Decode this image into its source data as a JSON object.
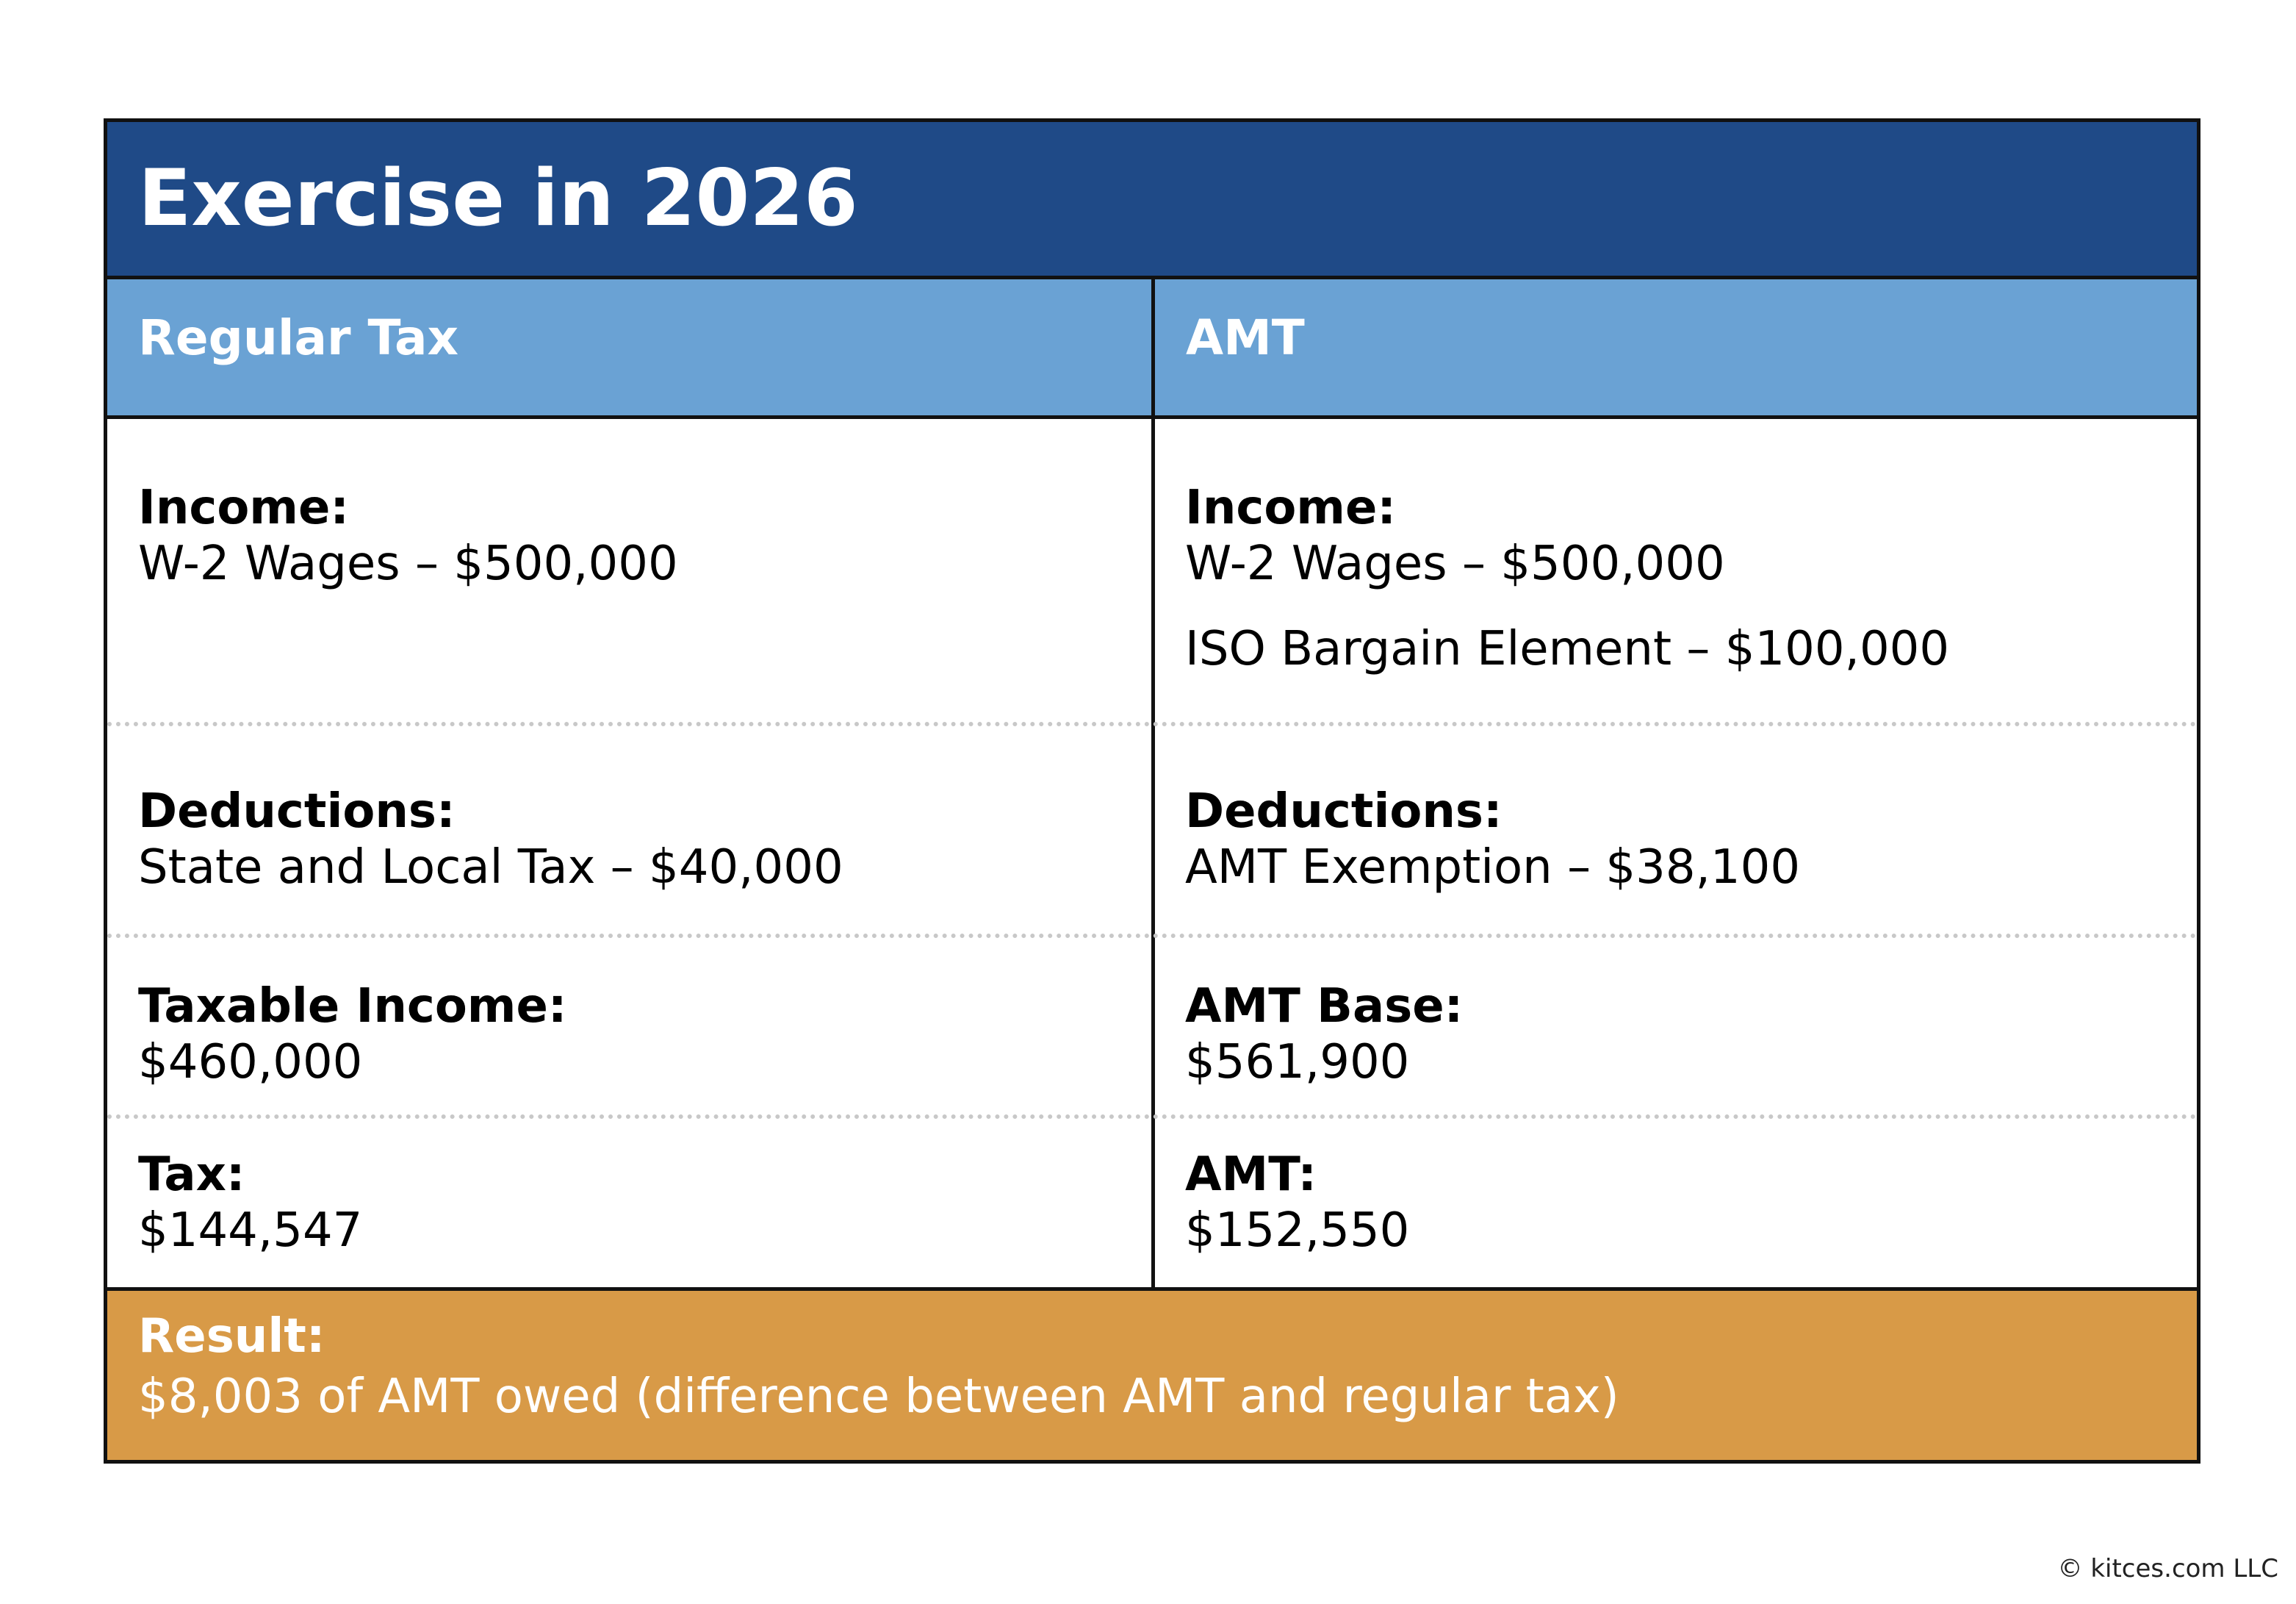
{
  "title": "Exercise in 2026",
  "columns": {
    "left_header": "Regular Tax",
    "right_header": "AMT"
  },
  "rows": {
    "income": {
      "left_label": "Income:",
      "left_value": "W-2 Wages – $500,000",
      "right_label": "Income:",
      "right_value": "W-2 Wages – $500,000",
      "right_value_2": "ISO Bargain Element – $100,000"
    },
    "deductions": {
      "left_label": "Deductions:",
      "left_value": "State and Local Tax – $40,000",
      "right_label": "Deductions:",
      "right_value": "AMT Exemption – $38,100"
    },
    "taxable": {
      "left_label": "Taxable Income:",
      "left_value": "$460,000",
      "right_label": "AMT Base:",
      "right_value": "$561,900"
    },
    "tax": {
      "left_label": "Tax:",
      "left_value": "$144,547",
      "right_label": "AMT:",
      "right_value": "$152,550"
    }
  },
  "result": {
    "label": "Result:",
    "text": "$8,003 of AMT owed (difference between AMT and regular tax)"
  },
  "footer": {
    "copyright": "© kitces.com LLC"
  },
  "colors": {
    "title_bar": "#1f4a87",
    "header_row": "#6aa2d4",
    "result_bar": "#d89a47",
    "border": "#111111"
  }
}
